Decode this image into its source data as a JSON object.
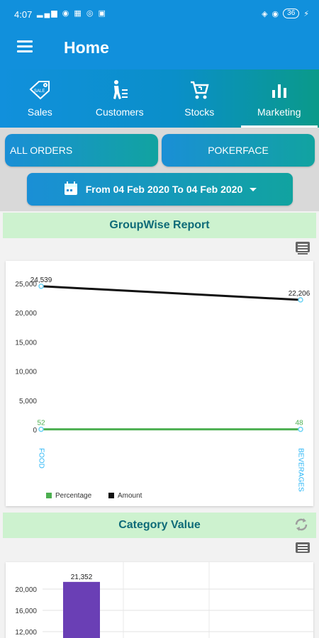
{
  "status": {
    "time": "4:07",
    "battery": "36"
  },
  "header": {
    "title": "Home"
  },
  "tabs": [
    {
      "label": "Sales",
      "icon": "sale-tag-icon"
    },
    {
      "label": "Customers",
      "icon": "customer-queue-icon"
    },
    {
      "label": "Stocks",
      "icon": "cart-icon"
    },
    {
      "label": "Marketing",
      "icon": "bar-chart-icon",
      "active": true
    }
  ],
  "filters": {
    "orders": "ALL ORDERS",
    "customer": "POKERFACE",
    "date_range": "From 04 Feb 2020 To 04 Feb 2020"
  },
  "groupwise": {
    "title": "GroupWise Report"
  },
  "category": {
    "title": "Category Value"
  },
  "colors": {
    "accent": "#1190dc",
    "percentage": "#4caf50",
    "amount": "#111111",
    "bar": "#6a3fb5",
    "header_bg": "#cdf2cf",
    "header_text": "#0f6b78"
  },
  "chart_data": [
    {
      "type": "line",
      "categories": [
        "FOOD",
        "BEVERAGES"
      ],
      "series": [
        {
          "name": "Percentage",
          "values": [
            52,
            48
          ]
        },
        {
          "name": "Amount",
          "values": [
            24539,
            22206
          ]
        }
      ],
      "point_labels": {
        "Percentage": [
          "52",
          "48"
        ],
        "Amount": [
          "24,539",
          "22,206"
        ]
      },
      "yticks": [
        "0",
        "5,000",
        "10,000",
        "15,000",
        "20,000",
        "25,000"
      ],
      "legend": [
        "Percentage",
        "Amount"
      ],
      "ylim": [
        0,
        25000
      ]
    },
    {
      "type": "bar",
      "categories": [
        ""
      ],
      "values": [
        21352
      ],
      "value_labels": [
        "21,352"
      ],
      "yticks": [
        "12,000",
        "16,000",
        "20,000"
      ]
    }
  ]
}
